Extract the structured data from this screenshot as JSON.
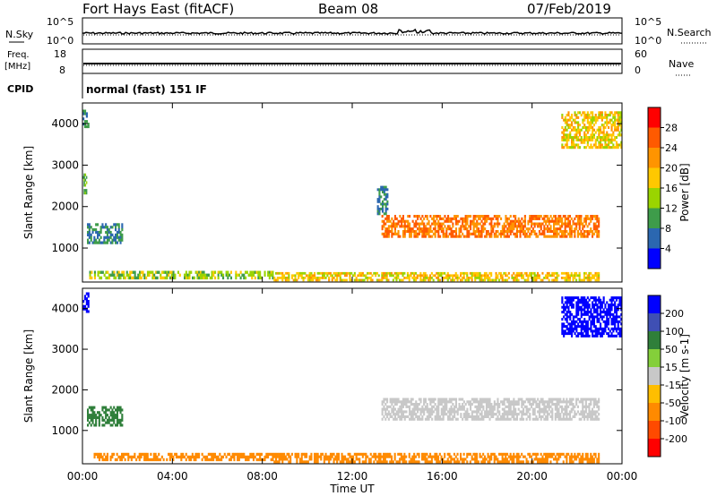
{
  "header": {
    "station": "Fort Hays East (fitACF)",
    "beam": "Beam 08",
    "date": "07/Feb/2019"
  },
  "panels": {
    "nsky_label": "N.Sky",
    "nsky_ticks": [
      "10^5",
      "10^0"
    ],
    "nsearch_label": "N.Search",
    "freq_label_line1": "Freq.",
    "freq_label_line2": "[MHz]",
    "freq_ticks": [
      "18",
      "8"
    ],
    "nave_label": "Nave",
    "nave_ticks": [
      "60",
      "0"
    ],
    "cpid_label": "CPID",
    "cpid_text": "normal (fast) 151 IF"
  },
  "colorbars": {
    "power": {
      "title": "Power [dB]",
      "ticks": [
        "28",
        "24",
        "20",
        "16",
        "12",
        "8",
        "4"
      ],
      "colors": [
        "#ff0000",
        "#ff5a00",
        "#ff9400",
        "#ffc800",
        "#9ad400",
        "#3e9c4a",
        "#2b67b0",
        "#0000ff"
      ]
    },
    "velocity": {
      "title": "Velocity [m s-1]",
      "ticks": [
        "200",
        "100",
        "50",
        "15",
        "-15",
        "-50",
        "-100",
        "-200"
      ],
      "colors": [
        "#0000ff",
        "#3f4fb4",
        "#2f7f3a",
        "#84cf3a",
        "#c8c8c8",
        "#ffbe00",
        "#ff8a00",
        "#ff4a00",
        "#ff0000"
      ]
    }
  },
  "axes": {
    "ylabel": "Slant Range [km]",
    "xlabel": "Time UT",
    "xticks": [
      "00:00",
      "04:00",
      "08:00",
      "12:00",
      "16:00",
      "20:00",
      "00:00"
    ],
    "yticks": [
      "1000",
      "2000",
      "3000",
      "4000"
    ]
  },
  "chart_data": [
    {
      "type": "heatmap",
      "title": "",
      "xlabel": "Time UT",
      "ylabel": "Slant Range [km]",
      "colorbar": "Power [dB]",
      "x_range_hours": [
        0,
        24
      ],
      "ylim": [
        180,
        4500
      ],
      "regions": [
        {
          "t": [
            0.0,
            0.3
          ],
          "r": [
            3900,
            4400
          ],
          "value": 8
        },
        {
          "t": [
            0.0,
            0.2
          ],
          "r": [
            2300,
            2800
          ],
          "value": 12
        },
        {
          "t": [
            0.2,
            1.8
          ],
          "r": [
            1100,
            1600
          ],
          "value": 8
        },
        {
          "t": [
            0.3,
            8.5
          ],
          "r": [
            250,
            450
          ],
          "value": 14
        },
        {
          "t": [
            8.5,
            23.0
          ],
          "r": [
            200,
            420
          ],
          "value": 18
        },
        {
          "t": [
            13.3,
            23.0
          ],
          "r": [
            1250,
            1800
          ],
          "value": 24
        },
        {
          "t": [
            13.1,
            13.6
          ],
          "r": [
            1800,
            2500
          ],
          "value": 8
        },
        {
          "t": [
            21.3,
            24.0
          ],
          "r": [
            3400,
            4300
          ],
          "value": 18
        }
      ]
    },
    {
      "type": "heatmap",
      "title": "",
      "xlabel": "Time UT",
      "ylabel": "Slant Range [km]",
      "colorbar": "Velocity [m s-1]",
      "x_range_hours": [
        0,
        24
      ],
      "ylim": [
        180,
        4500
      ],
      "regions": [
        {
          "t": [
            0.0,
            0.3
          ],
          "r": [
            3900,
            4400
          ],
          "value": 200
        },
        {
          "t": [
            0.2,
            1.8
          ],
          "r": [
            1100,
            1600
          ],
          "value": 50
        },
        {
          "t": [
            0.5,
            8.5
          ],
          "r": [
            250,
            450
          ],
          "value": -60
        },
        {
          "t": [
            8.5,
            23.0
          ],
          "r": [
            200,
            450
          ],
          "value": -70
        },
        {
          "t": [
            13.3,
            23.0
          ],
          "r": [
            1250,
            1800
          ],
          "value": 0
        },
        {
          "t": [
            21.3,
            24.0
          ],
          "r": [
            3300,
            4300
          ],
          "value": 200
        }
      ]
    }
  ]
}
